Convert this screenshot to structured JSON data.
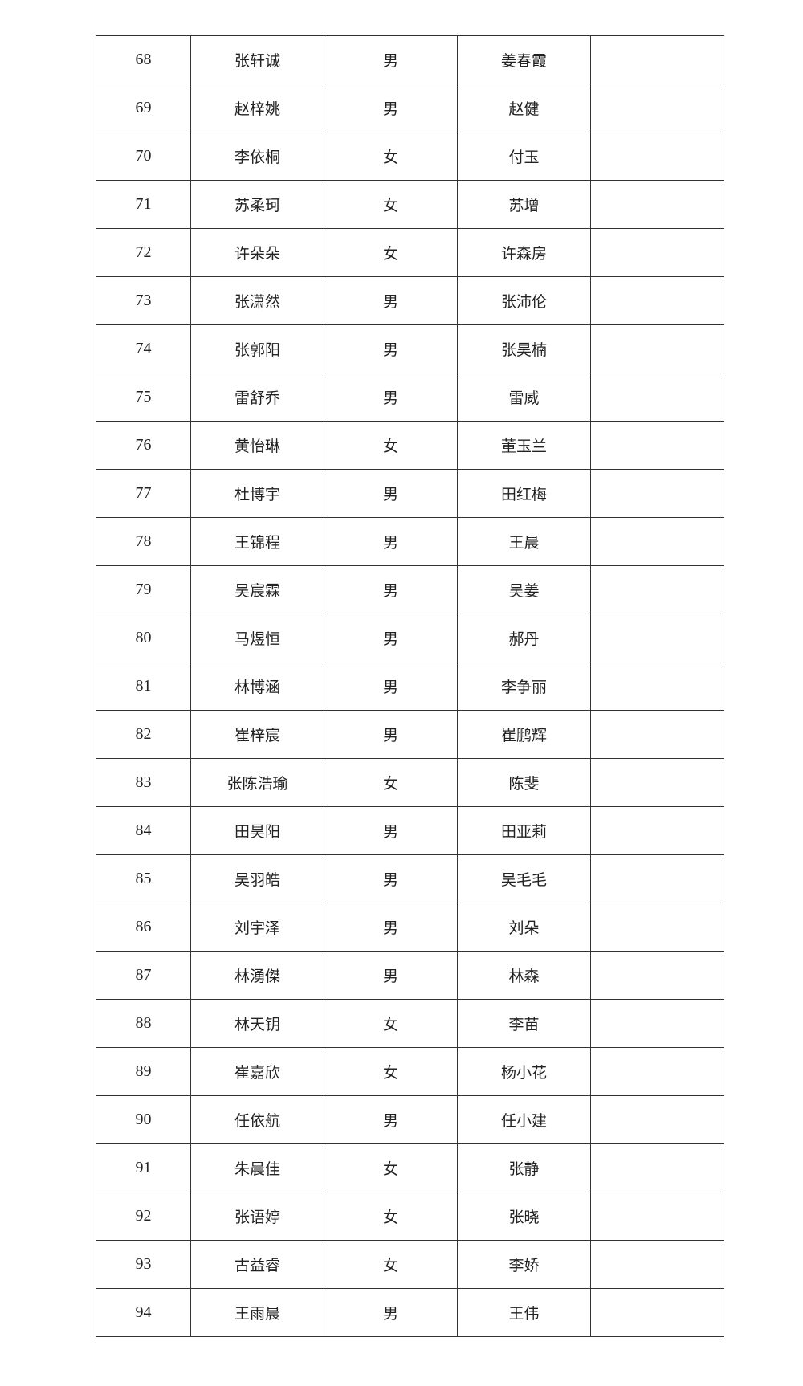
{
  "rows": [
    {
      "no": "68",
      "name": "张轩诚",
      "gender": "男",
      "guardian": "姜春霞",
      "note": ""
    },
    {
      "no": "69",
      "name": "赵梓姚",
      "gender": "男",
      "guardian": "赵健",
      "note": ""
    },
    {
      "no": "70",
      "name": "李依桐",
      "gender": "女",
      "guardian": "付玉",
      "note": ""
    },
    {
      "no": "71",
      "name": "苏柔珂",
      "gender": "女",
      "guardian": "苏增",
      "note": ""
    },
    {
      "no": "72",
      "name": "许朵朵",
      "gender": "女",
      "guardian": "许森房",
      "note": ""
    },
    {
      "no": "73",
      "name": "张潇然",
      "gender": "男",
      "guardian": "张沛伦",
      "note": ""
    },
    {
      "no": "74",
      "name": "张郭阳",
      "gender": "男",
      "guardian": "张昊楠",
      "note": ""
    },
    {
      "no": "75",
      "name": "雷舒乔",
      "gender": "男",
      "guardian": "雷威",
      "note": ""
    },
    {
      "no": "76",
      "name": "黄怡琳",
      "gender": "女",
      "guardian": "董玉兰",
      "note": ""
    },
    {
      "no": "77",
      "name": "杜博宇",
      "gender": "男",
      "guardian": "田红梅",
      "note": ""
    },
    {
      "no": "78",
      "name": "王锦程",
      "gender": "男",
      "guardian": "王晨",
      "note": ""
    },
    {
      "no": "79",
      "name": "吴宸霖",
      "gender": "男",
      "guardian": "吴姜",
      "note": ""
    },
    {
      "no": "80",
      "name": "马煜恒",
      "gender": "男",
      "guardian": "郝丹",
      "note": ""
    },
    {
      "no": "81",
      "name": "林博涵",
      "gender": "男",
      "guardian": "李争丽",
      "note": ""
    },
    {
      "no": "82",
      "name": "崔梓宸",
      "gender": "男",
      "guardian": "崔鹏辉",
      "note": ""
    },
    {
      "no": "83",
      "name": "张陈浩瑜",
      "gender": "女",
      "guardian": "陈斐",
      "note": ""
    },
    {
      "no": "84",
      "name": "田昊阳",
      "gender": "男",
      "guardian": "田亚莉",
      "note": ""
    },
    {
      "no": "85",
      "name": "吴羽皓",
      "gender": "男",
      "guardian": "吴毛毛",
      "note": ""
    },
    {
      "no": "86",
      "name": "刘宇泽",
      "gender": "男",
      "guardian": "刘朵",
      "note": ""
    },
    {
      "no": "87",
      "name": "林湧傑",
      "gender": "男",
      "guardian": "林森",
      "note": ""
    },
    {
      "no": "88",
      "name": "林天钥",
      "gender": "女",
      "guardian": "李苗",
      "note": ""
    },
    {
      "no": "89",
      "name": "崔嘉欣",
      "gender": "女",
      "guardian": "杨小花",
      "note": ""
    },
    {
      "no": "90",
      "name": "任依航",
      "gender": "男",
      "guardian": "任小建",
      "note": ""
    },
    {
      "no": "91",
      "name": "朱晨佳",
      "gender": "女",
      "guardian": "张静",
      "note": ""
    },
    {
      "no": "92",
      "name": "张语婷",
      "gender": "女",
      "guardian": "张晓",
      "note": ""
    },
    {
      "no": "93",
      "name": "古益睿",
      "gender": "女",
      "guardian": "李娇",
      "note": ""
    },
    {
      "no": "94",
      "name": "王雨晨",
      "gender": "男",
      "guardian": "王伟",
      "note": ""
    }
  ]
}
